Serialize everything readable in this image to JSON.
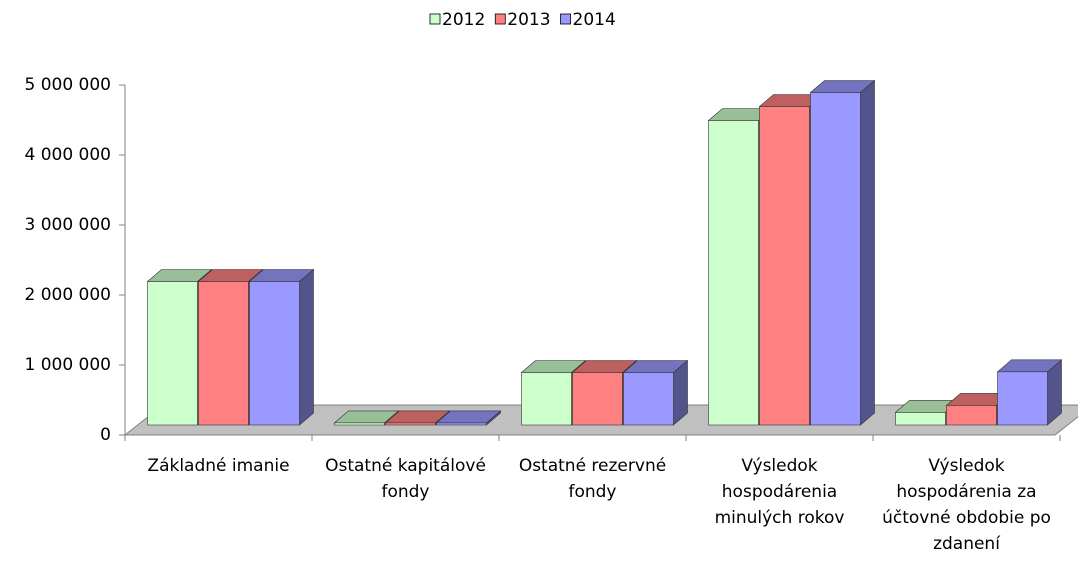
{
  "chart_data": {
    "type": "bar3d",
    "categories": [
      "Základné imanie",
      "Ostatné kapitálové fondy",
      "Ostatné rezervné fondy",
      "Výsledok hospodárenia minulých rokov",
      "Výsledok hospodárenia za účtovné obdobie po zdanení"
    ],
    "series": [
      {
        "name": "2012",
        "color": "#ccffcc",
        "values": [
          2050000,
          30000,
          750000,
          4350000,
          180000
        ]
      },
      {
        "name": "2013",
        "color": "#ff8080",
        "values": [
          2050000,
          30000,
          750000,
          4550000,
          280000
        ]
      },
      {
        "name": "2014",
        "color": "#9999ff",
        "values": [
          2050000,
          30000,
          750000,
          4750000,
          760000
        ]
      }
    ],
    "ylim": [
      0,
      5000000
    ],
    "yticks": [
      {
        "value": 0,
        "label": "0"
      },
      {
        "value": 1000000,
        "label": "1 000 000"
      },
      {
        "value": 2000000,
        "label": "2 000 000"
      },
      {
        "value": 3000000,
        "label": "3 000 000"
      },
      {
        "value": 4000000,
        "label": "4 000 000"
      },
      {
        "value": 5000000,
        "label": "5 000 000"
      }
    ],
    "legend": "top"
  }
}
